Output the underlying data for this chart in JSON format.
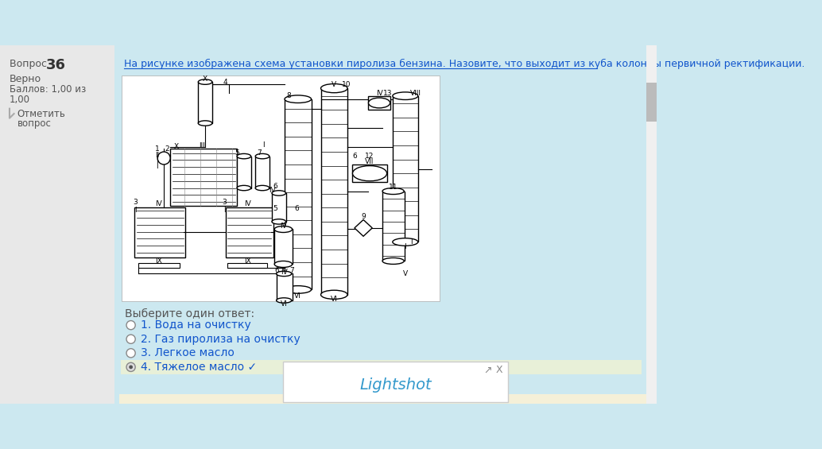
{
  "bg_color": "#cce8f0",
  "left_panel_bg": "#e8e8e8",
  "question_number": "36",
  "status": "Верно",
  "score_line1": "Баллов: 1,00 из",
  "score_line2": "1,00",
  "flag_line1": "Отметить",
  "flag_line2": "вопрос",
  "question_text": "На рисунке изображена схема установки пиролиза бензина. Назовите, что выходит из куба колонны первичной ректификации.",
  "diagram_bg": "#ffffff",
  "select_prompt": "Выберите один ответ:",
  "options": [
    "1. Вода на очистку",
    "2. Газ пиролиза на очистку",
    "3. Легкое масло",
    "4. Тяжелое масло ✓"
  ],
  "option_colors": [
    "#1155cc",
    "#1155cc",
    "#1155cc",
    "#1155cc"
  ],
  "selected_index": 3,
  "selected_bg": "#e8f0d8",
  "lightshot_text": "Lightshot",
  "lightshot_text_color": "#3399cc",
  "scrollbar_color": "#bbbbbb",
  "title_color": "#1155cc"
}
